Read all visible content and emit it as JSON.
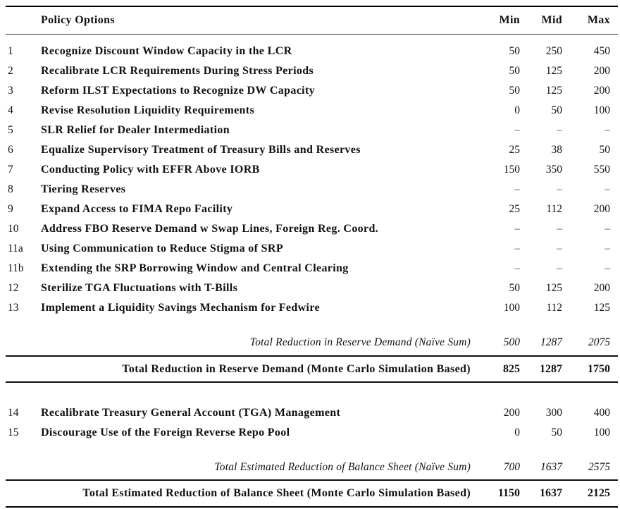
{
  "table": {
    "header": {
      "policy": "Policy Options",
      "min": "Min",
      "mid": "Mid",
      "max": "Max"
    },
    "rows": [
      {
        "num": "1",
        "label": "Recognize Discount Window Capacity in the LCR",
        "min": "50",
        "mid": "250",
        "max": "450"
      },
      {
        "num": "2",
        "label": "Recalibrate LCR Requirements During Stress Periods",
        "min": "50",
        "mid": "125",
        "max": "200"
      },
      {
        "num": "3",
        "label": "Reform ILST Expectations to Recognize DW Capacity",
        "min": "50",
        "mid": "125",
        "max": "200"
      },
      {
        "num": "4",
        "label": "Revise Resolution Liquidity Requirements",
        "min": "0",
        "mid": "50",
        "max": "100"
      },
      {
        "num": "5",
        "label": "SLR Relief for Dealer Intermediation",
        "min": "–",
        "mid": "–",
        "max": "–"
      },
      {
        "num": "6",
        "label": "Equalize Supervisory Treatment of Treasury Bills and Reserves",
        "min": "25",
        "mid": "38",
        "max": "50"
      },
      {
        "num": "7",
        "label": "Conducting Policy with EFFR Above IORB",
        "min": "150",
        "mid": "350",
        "max": "550"
      },
      {
        "num": "8",
        "label": "Tiering Reserves",
        "min": "–",
        "mid": "–",
        "max": "–"
      },
      {
        "num": "9",
        "label": "Expand Access to FIMA Repo Facility",
        "min": "25",
        "mid": "112",
        "max": "200"
      },
      {
        "num": "10",
        "label": "Address FBO Reserve Demand w Swap Lines, Foreign Reg. Coord.",
        "min": "–",
        "mid": "–",
        "max": "–"
      },
      {
        "num": "11a",
        "label": "Using Communication to Reduce Stigma of SRP",
        "min": "–",
        "mid": "–",
        "max": "–"
      },
      {
        "num": "11b",
        "label": "Extending the SRP Borrowing Window and Central Clearing",
        "min": "–",
        "mid": "–",
        "max": "–"
      },
      {
        "num": "12",
        "label": "Sterilize TGA Fluctuations with T-Bills",
        "min": "50",
        "mid": "125",
        "max": "200"
      },
      {
        "num": "13",
        "label": "Implement a Liquidity Savings Mechanism for Fedwire",
        "min": "100",
        "mid": "112",
        "max": "125"
      }
    ],
    "naive_total_1": {
      "label": "Total Reduction in Reserve Demand (Naïve Sum)",
      "min": "500",
      "mid": "1287",
      "max": "2075"
    },
    "mc_total_1": {
      "label": "Total Reduction in Reserve Demand (Monte Carlo Simulation Based)",
      "min": "825",
      "mid": "1287",
      "max": "1750"
    },
    "rows2": [
      {
        "num": "14",
        "label": "Recalibrate Treasury General Account (TGA) Management",
        "min": "200",
        "mid": "300",
        "max": "400"
      },
      {
        "num": "15",
        "label": "Discourage Use of the Foreign Reverse Repo Pool",
        "min": "0",
        "mid": "50",
        "max": "100"
      }
    ],
    "naive_total_2": {
      "label": "Total Estimated Reduction of Balance Sheet (Naïve Sum)",
      "min": "700",
      "mid": "1637",
      "max": "2575"
    },
    "mc_total_2": {
      "label": "Total Estimated Reduction of Balance Sheet (Monte Carlo Simulation Based)",
      "min": "1150",
      "mid": "1637",
      "max": "2125"
    }
  }
}
